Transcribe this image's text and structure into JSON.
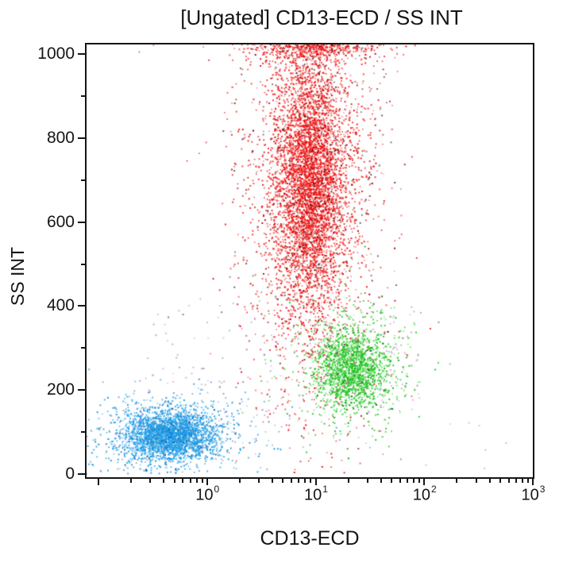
{
  "figure": {
    "title": "[Ungated] CD13-ECD / SS INT"
  },
  "chart_data": {
    "type": "scatter",
    "title": "[Ungated] CD13-ECD / SS INT",
    "xlabel": "CD13-ECD",
    "ylabel": "SS INT",
    "x_scale": "log10",
    "xlim_log10": [
      -1.11,
      3
    ],
    "ylim": [
      0,
      1023
    ],
    "grid": false,
    "legend": false,
    "frame_color": "#151515",
    "background": "#ffffff",
    "x_major_ticks": [
      {
        "decade": -1,
        "base": "",
        "exp": ""
      },
      {
        "decade": 0,
        "base": "10",
        "exp": "0"
      },
      {
        "decade": 1,
        "base": "10",
        "exp": "1"
      },
      {
        "decade": 2,
        "base": "10",
        "exp": "2"
      },
      {
        "decade": 3,
        "base": "10",
        "exp": "3"
      }
    ],
    "x_minor_decades": [
      -1,
      0,
      1,
      2
    ],
    "y_major_ticks": [
      0,
      200,
      400,
      600,
      800,
      1000
    ],
    "y_minor_ticks": [
      100,
      300,
      500,
      700,
      900
    ],
    "clusters": [
      {
        "name": "granulocytes-red",
        "color": "#ee1111",
        "variants": [
          "#d40000",
          "#ff4444",
          "#b00000",
          "#5f0b0b"
        ],
        "n": 6200,
        "x_log_mean": 0.95,
        "x_log_sd": 0.17,
        "y_mean": 700,
        "y_sd": 155,
        "halo_frac": 0.33,
        "halo_scale": 2.0,
        "clip_top": true
      },
      {
        "name": "monocytes-green",
        "color": "#22cc22",
        "variants": [
          "#00b400",
          "#55e855",
          "#0f8f0f",
          "#116611"
        ],
        "n": 1800,
        "x_log_mean": 1.33,
        "x_log_sd": 0.16,
        "y_mean": 252,
        "y_sd": 46,
        "halo_frac": 0.3,
        "halo_scale": 1.8,
        "clip_top": false
      },
      {
        "name": "lymphocytes-blue",
        "color": "#1f9ce6",
        "variants": [
          "#0b7fd4",
          "#4fbdf2",
          "#0a5ab0",
          "#2f86c8"
        ],
        "n": 3100,
        "x_log_mean": -0.34,
        "x_log_sd": 0.21,
        "y_mean": 93,
        "y_sd": 28,
        "halo_frac": 0.28,
        "halo_scale": 1.8,
        "clip_top": false
      }
    ],
    "debris": [
      {
        "name": "mid-scatter",
        "n": 130,
        "x_log_range": [
          -0.6,
          2.0
        ],
        "y_range": [
          140,
          420
        ],
        "colors": [
          "#999999",
          "#cc66cc",
          "#66bb66",
          "#555577"
        ]
      },
      {
        "name": "red-flank-specks",
        "n": 90,
        "x_log_range": [
          0.2,
          1.75
        ],
        "y_range": [
          400,
          1020
        ],
        "colors": [
          "#550505",
          "#222222",
          "#993355"
        ]
      },
      {
        "name": "green-fringe",
        "n": 60,
        "x_log_range": [
          0.9,
          1.95
        ],
        "y_range": [
          150,
          390
        ],
        "colors": [
          "#ee66ee",
          "#66bb66",
          "#888888"
        ]
      },
      {
        "name": "bottom-sparse",
        "n": 35,
        "x_log_range": [
          -1.05,
          2.9
        ],
        "y_range": [
          2,
          125
        ],
        "colors": [
          "#888888",
          "#44aa44",
          "#3366cc"
        ]
      },
      {
        "name": "blue-fringe",
        "n": 45,
        "x_log_range": [
          -1.0,
          0.45
        ],
        "y_range": [
          10,
          230
        ],
        "colors": [
          "#3399dd",
          "#777777",
          "#cc55cc",
          "#557755"
        ]
      }
    ]
  }
}
